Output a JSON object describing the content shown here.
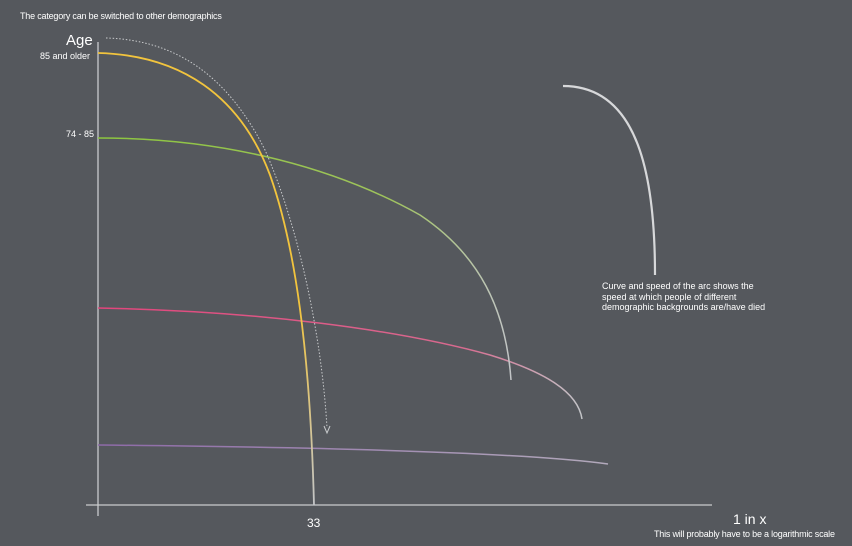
{
  "notes": {
    "top": "The category can be switched to other demographics",
    "arc_explanation": "Curve  and speed of the arc shows the speed at which people of different demographic backgrounds are/have died",
    "x_axis": "This will probably have to be a logarithmic scale"
  },
  "axes": {
    "y_title": "Age",
    "x_title": "1 in x",
    "x_tick": "33"
  },
  "categories": {
    "top": "85 and older",
    "second": "74 - 85"
  },
  "colors": {
    "background": "#55585d",
    "axis": "#c9cbcd",
    "age_85_plus": "#f2c43d",
    "age_74_85": "#8cc63f",
    "pink_series": "#e2457c",
    "purple_series": "#8e6aa8",
    "curve_end": "#c3c5c8",
    "dashed_arrow": "#c9cbcd"
  }
}
